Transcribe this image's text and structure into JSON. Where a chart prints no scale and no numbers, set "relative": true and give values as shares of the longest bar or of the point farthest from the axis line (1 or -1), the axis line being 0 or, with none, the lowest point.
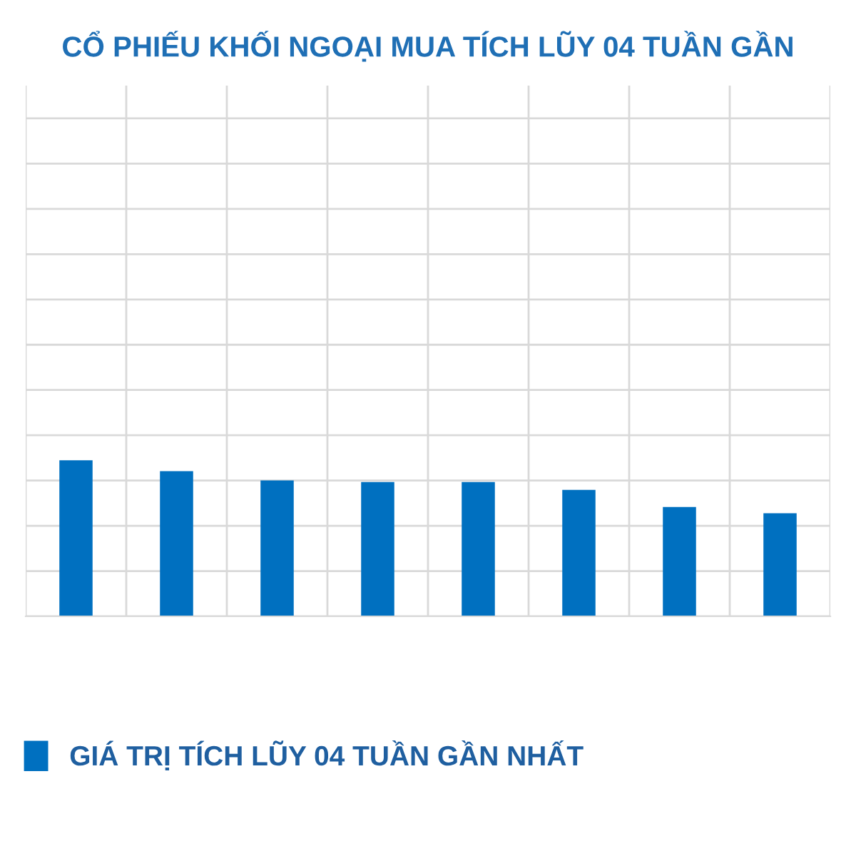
{
  "chart_data": {
    "type": "bar",
    "title": "CỔ PHIẾU KHỐI NGOẠI MUA TÍCH LŨY 04 TUẦN GẦN",
    "categories": [
      null,
      null,
      null,
      null,
      null,
      null,
      null,
      null
    ],
    "relative": true,
    "series": [
      {
        "name": "GIÁ TRỊ TÍCH LŨY 04 TUẦN GẦN NHẤT",
        "color": "#0070c0",
        "values": [
          1,
          0.93,
          0.87,
          0.86,
          0.86,
          0.81,
          0.7,
          0.66
        ]
      }
    ],
    "grid": true,
    "legend": "bottom"
  }
}
